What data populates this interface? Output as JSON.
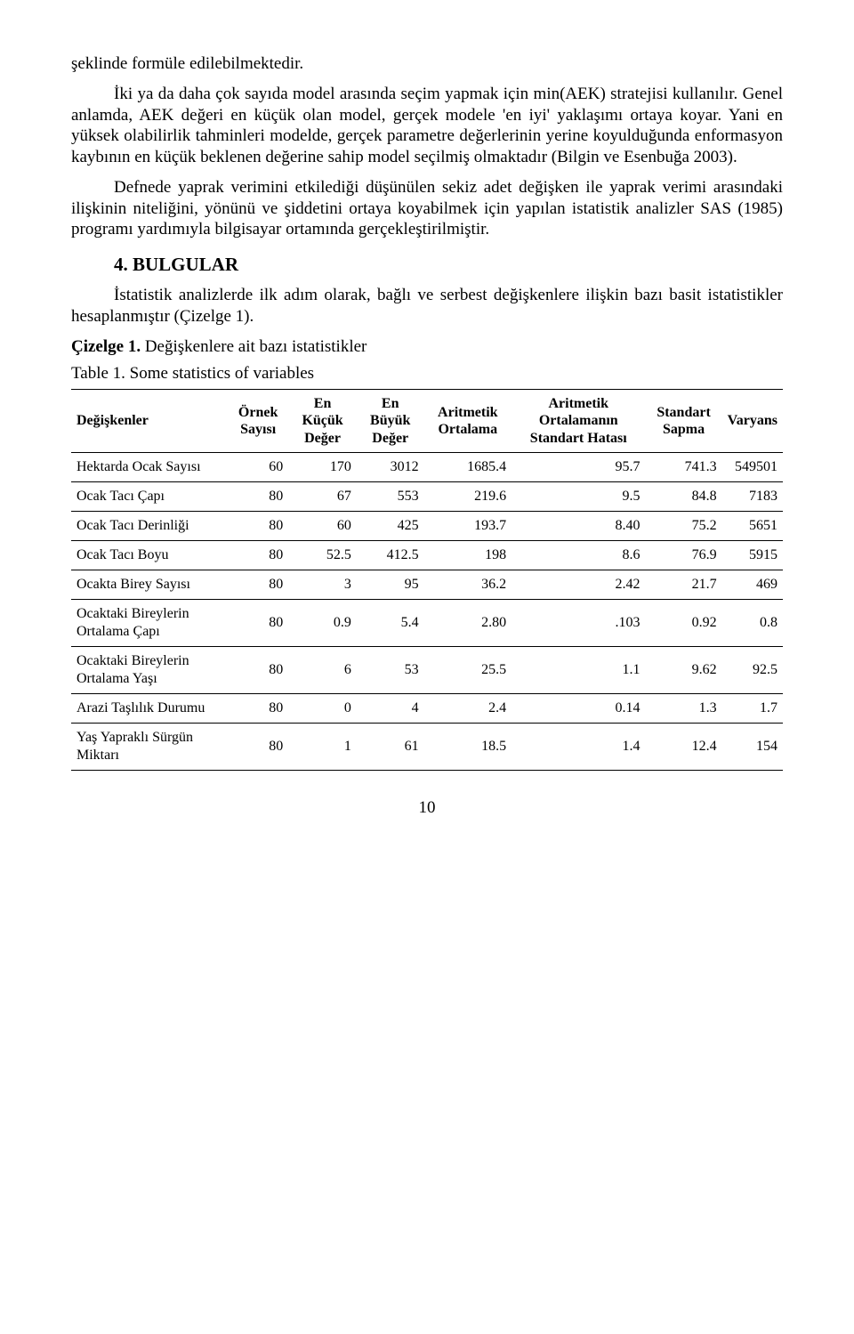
{
  "paragraphs": {
    "p1": "şeklinde formüle edilebilmektedir.",
    "p2": "İki ya da daha çok sayıda model arasında seçim yapmak için min(AEK) stratejisi kullanılır. Genel anlamda, AEK değeri en küçük olan model, gerçek modele 'en iyi' yaklaşımı ortaya koyar. Yani en yüksek olabilirlik tahminleri modelde, gerçek parametre değerlerinin yerine koyulduğunda enformasyon kaybının en küçük beklenen değerine sahip model seçilmiş olmaktadır (Bilgin ve Esenbuğa 2003).",
    "p3": "Defnede yaprak verimini etkilediği düşünülen sekiz adet değişken ile yaprak verimi arasındaki ilişkinin niteliğini, yönünü ve şiddetini ortaya koyabilmek için yapılan istatistik analizler SAS (1985) programı yardımıyla bilgisayar ortamında gerçekleştirilmiştir.",
    "section": "4.  BULGULAR",
    "p4": "İstatistik analizlerde ilk adım olarak, bağlı ve serbest değişkenlere ilişkin bazı basit istatistikler hesaplanmıştır (Çizelge 1).",
    "caption_tr": "Çizelge 1. Değişkenlere ait bazı istatistikler",
    "caption_en": "Table 1. Some statistics of variables"
  },
  "table": {
    "headers": {
      "c0": "Değişkenler",
      "c1": "Örnek Sayısı",
      "c2": "En Küçük Değer",
      "c3": "En Büyük Değer",
      "c4": "Aritmetik Ortalama",
      "c5": "Aritmetik Ortalamanın Standart Hatası",
      "c6": "Standart Sapma",
      "c7": "Varyans"
    },
    "rows": [
      {
        "c0": "Hektarda Ocak Sayısı",
        "c1": "60",
        "c2": "170",
        "c3": "3012",
        "c4": "1685.4",
        "c5": "95.7",
        "c6": "741.3",
        "c7": "549501"
      },
      {
        "c0": "Ocak Tacı Çapı",
        "c1": "80",
        "c2": "67",
        "c3": "553",
        "c4": "219.6",
        "c5": "9.5",
        "c6": "84.8",
        "c7": "7183"
      },
      {
        "c0": "Ocak Tacı Derinliği",
        "c1": "80",
        "c2": "60",
        "c3": "425",
        "c4": "193.7",
        "c5": "8.40",
        "c6": "75.2",
        "c7": "5651"
      },
      {
        "c0": "Ocak Tacı Boyu",
        "c1": "80",
        "c2": "52.5",
        "c3": "412.5",
        "c4": "198",
        "c5": "8.6",
        "c6": "76.9",
        "c7": "5915"
      },
      {
        "c0": "Ocakta Birey Sayısı",
        "c1": "80",
        "c2": "3",
        "c3": "95",
        "c4": "36.2",
        "c5": "2.42",
        "c6": "21.7",
        "c7": "469"
      },
      {
        "c0": "Ocaktaki Bireylerin Ortalama Çapı",
        "c1": "80",
        "c2": "0.9",
        "c3": "5.4",
        "c4": "2.80",
        "c5": ".103",
        "c6": "0.92",
        "c7": "0.8"
      },
      {
        "c0": "Ocaktaki Bireylerin Ortalama Yaşı",
        "c1": "80",
        "c2": "6",
        "c3": "53",
        "c4": "25.5",
        "c5": "1.1",
        "c6": "9.62",
        "c7": "92.5"
      },
      {
        "c0": "Arazi Taşlılık Durumu",
        "c1": "80",
        "c2": "0",
        "c3": "4",
        "c4": "2.4",
        "c5": "0.14",
        "c6": "1.3",
        "c7": "1.7"
      },
      {
        "c0": "Yaş Yapraklı Sürgün Miktarı",
        "c1": "80",
        "c2": "1",
        "c3": "61",
        "c4": "18.5",
        "c5": "1.4",
        "c6": "12.4",
        "c7": "154"
      }
    ]
  },
  "page_number": "10"
}
